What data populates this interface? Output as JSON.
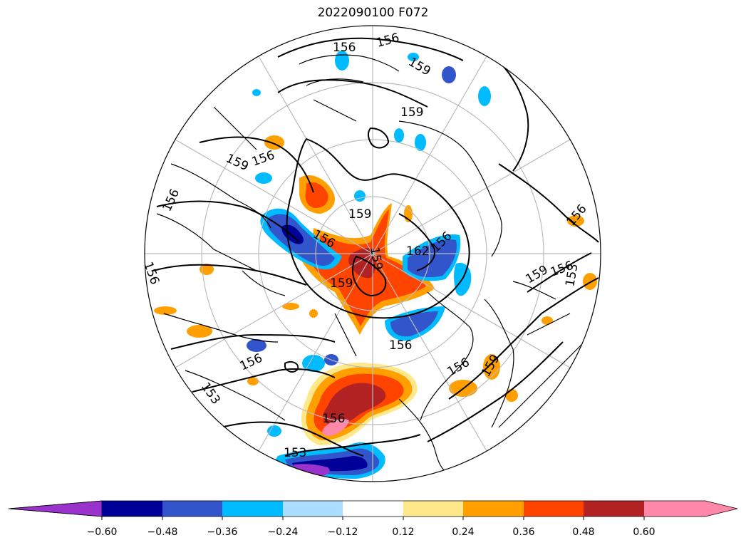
{
  "title": "2022090100 F072",
  "colors": {
    "lt_-0.60": "#9933cc",
    "-0.60_-0.48": "#000099",
    "-0.48_-0.36": "#3355cc",
    "-0.36_-0.24": "#00bbff",
    "-0.24_-0.12": "#aaddff",
    "-0.12_0.12": "#ffffff",
    "0.12_0.24": "#ffe88a",
    "0.24_0.36": "#ffa000",
    "0.36_0.48": "#ff4400",
    "0.48_0.60": "#b22222",
    "gt_0.60": "#ff88aa"
  },
  "colorbar": {
    "ticks": [
      "−0.60",
      "−0.48",
      "−0.36",
      "−0.24",
      "−0.12",
      "0.12",
      "0.24",
      "0.36",
      "0.48",
      "0.60"
    ],
    "extend": "both"
  },
  "contour_labels": [
    {
      "text": "156"
    },
    {
      "text": "156"
    },
    {
      "text": "159"
    },
    {
      "text": "159"
    },
    {
      "text": "159"
    },
    {
      "text": "156"
    },
    {
      "text": "156"
    },
    {
      "text": "156"
    },
    {
      "text": "159"
    },
    {
      "text": "156"
    },
    {
      "text": "159"
    },
    {
      "text": "162"
    },
    {
      "text": "159"
    },
    {
      "text": "156"
    },
    {
      "text": "156"
    },
    {
      "text": "159"
    },
    {
      "text": "156"
    },
    {
      "text": "153"
    },
    {
      "text": "156"
    },
    {
      "text": "156"
    },
    {
      "text": "159"
    },
    {
      "text": "156"
    },
    {
      "text": "156"
    },
    {
      "text": "153"
    },
    {
      "text": "153"
    }
  ]
}
